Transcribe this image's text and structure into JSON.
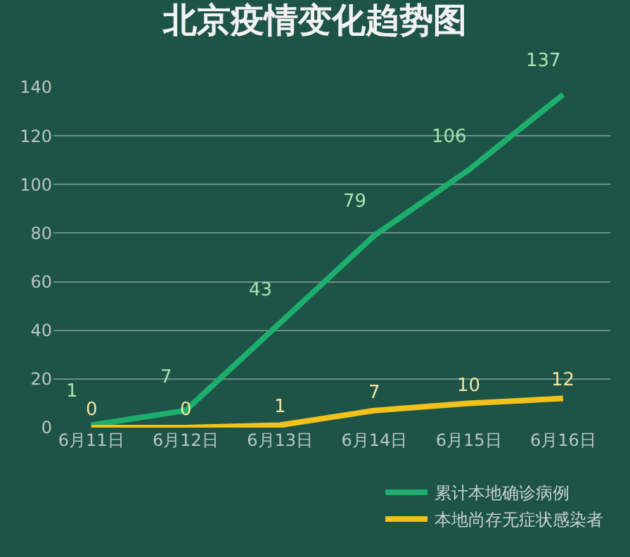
{
  "chart_data": {
    "type": "line",
    "title": "北京疫情变化趋势图",
    "categories": [
      "6月11日",
      "6月12日",
      "6月13日",
      "6月14日",
      "6月15日",
      "6月16日"
    ],
    "series": [
      {
        "name": "累计本地确诊病例",
        "color": "#1dae6e",
        "values": [
          1,
          7,
          43,
          79,
          106,
          137
        ]
      },
      {
        "name": "本地尚存无症状感染者",
        "color": "#f2c21b",
        "values": [
          0,
          0,
          1,
          7,
          10,
          12
        ]
      }
    ],
    "ylim": [
      0,
      140
    ],
    "yticks": [
      0,
      20,
      40,
      60,
      80,
      100,
      120,
      140
    ],
    "grid": "y",
    "legend": "bottom right",
    "data_labels": true,
    "marker": "none",
    "line_style": "solid"
  }
}
